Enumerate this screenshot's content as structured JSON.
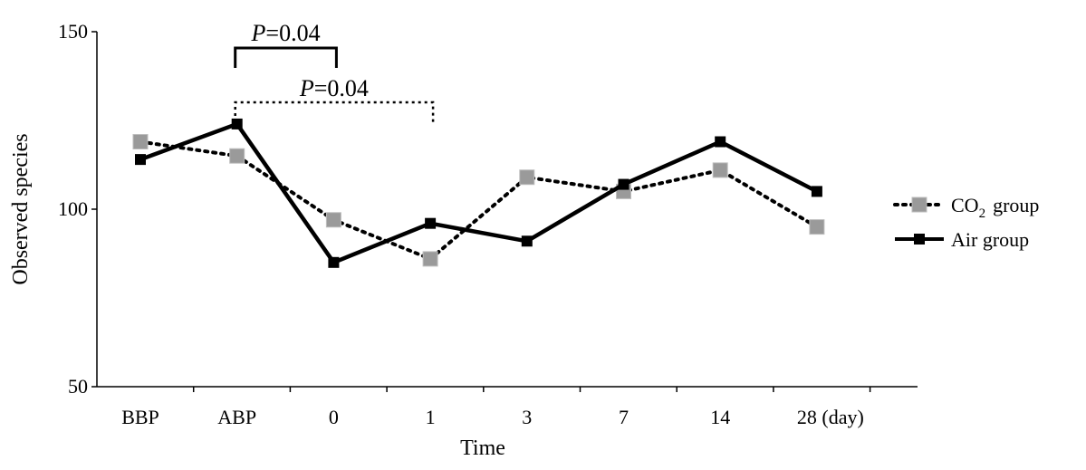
{
  "chart_data": {
    "type": "line",
    "title": "",
    "xlabel": "Time",
    "ylabel": "Observed species",
    "categories": [
      "BBP",
      "ABP",
      "0",
      "1",
      "3",
      "7",
      "14",
      "28 (day)"
    ],
    "yticks": [
      "150",
      "100",
      "50"
    ],
    "ylim": [
      50,
      150
    ],
    "grid": false,
    "legend_position": "right",
    "series": [
      {
        "name": "CO2 group",
        "name_main": "CO",
        "name_sub": "2",
        "name_rest": "group",
        "style": "dotted",
        "marker": "gray-square",
        "color": "#000000",
        "marker_color": "#9a9a9a",
        "values": [
          119,
          115,
          97,
          86,
          109,
          105,
          111,
          95
        ]
      },
      {
        "name": "Air group",
        "style": "solid",
        "marker": "black-square",
        "color": "#000000",
        "marker_color": "#000000",
        "values": [
          114,
          124,
          85,
          96,
          91,
          107,
          119,
          105
        ]
      }
    ],
    "annotations": [
      {
        "label_italic": "P",
        "label_rest": "=0.04",
        "from": "ABP",
        "to": "0",
        "style": "solid"
      },
      {
        "label_italic": "P",
        "label_rest": "=0.04",
        "from": "ABP",
        "to": "1",
        "style": "dotted"
      }
    ]
  }
}
